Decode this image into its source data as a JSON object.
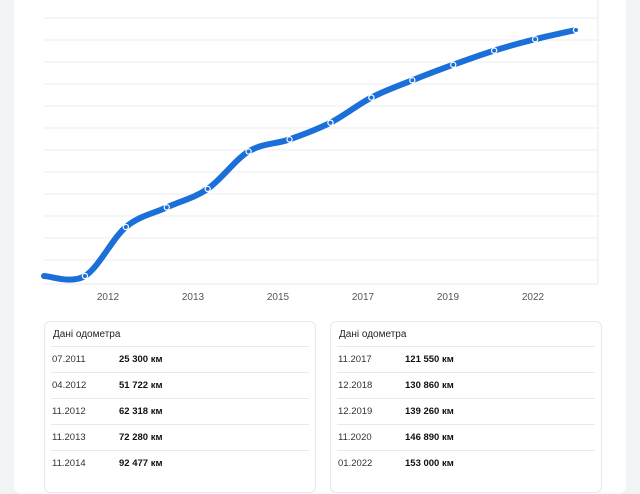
{
  "chart_data": {
    "type": "line",
    "x_tick_labels": [
      "2012",
      "2013",
      "2015",
      "2017",
      "2019",
      "2022"
    ],
    "series": [
      {
        "values": [
          25300,
          25300,
          51722,
          62318,
          72280,
          92477,
          99000,
          108000,
          121550,
          130860,
          139260,
          146890,
          153000,
          158000
        ]
      }
    ],
    "y_range": [
      22000,
      160000
    ],
    "grid": true,
    "line_color": "#1a6fd8",
    "grid_color": "#eceef1"
  },
  "odometer_left": {
    "title": "Дані одометра",
    "rows": [
      {
        "date": "07.2011",
        "km": "25 300 км"
      },
      {
        "date": "04.2012",
        "km": "51 722 км"
      },
      {
        "date": "11.2012",
        "km": "62 318 км"
      },
      {
        "date": "11.2013",
        "km": "72 280 км"
      },
      {
        "date": "11.2014",
        "km": "92 477 км"
      }
    ]
  },
  "odometer_right": {
    "title": "Дані одометра",
    "rows": [
      {
        "date": "11.2017",
        "km": "121 550 км"
      },
      {
        "date": "12.2018",
        "km": "130 860 км"
      },
      {
        "date": "12.2019",
        "km": "139 260 км"
      },
      {
        "date": "11.2020",
        "km": "146 890 км"
      },
      {
        "date": "01.2022",
        "km": "153 000 км"
      }
    ]
  }
}
